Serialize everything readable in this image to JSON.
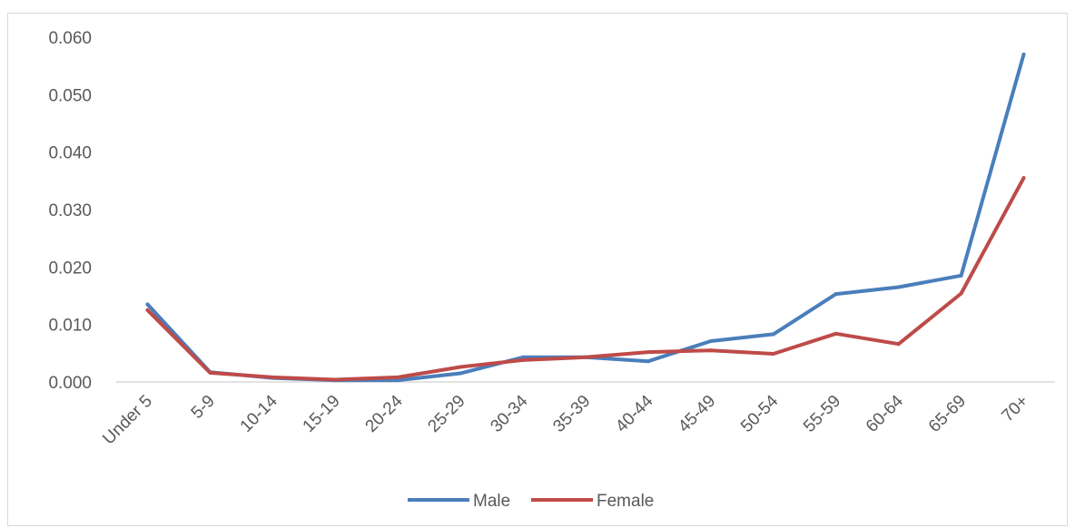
{
  "chart_data": {
    "type": "line",
    "title": "",
    "xlabel": "",
    "ylabel": "",
    "categories": [
      "Under 5",
      "5-9",
      "10-14",
      "15-19",
      "20-24",
      "25-29",
      "30-34",
      "35-39",
      "40-44",
      "45-49",
      "50-54",
      "55-59",
      "60-64",
      "65-69",
      "70+"
    ],
    "ylim": [
      0,
      0.06
    ],
    "yticks": [
      "0.000",
      "0.010",
      "0.020",
      "0.030",
      "0.040",
      "0.050",
      "0.060"
    ],
    "ytick_values": [
      0,
      0.01,
      0.02,
      0.03,
      0.04,
      0.05,
      0.06
    ],
    "grid": false,
    "legend_position": "bottom",
    "series": [
      {
        "name": "Male",
        "color": "#4a7ebb",
        "values": [
          0.0135,
          0.0017,
          0.0007,
          0.0003,
          0.0003,
          0.0015,
          0.0043,
          0.0043,
          0.0036,
          0.0071,
          0.0083,
          0.0153,
          0.0165,
          0.0185,
          0.057
        ]
      },
      {
        "name": "Female",
        "color": "#be4b48",
        "values": [
          0.0125,
          0.0016,
          0.0008,
          0.0004,
          0.0008,
          0.0026,
          0.0038,
          0.0043,
          0.0052,
          0.0055,
          0.0049,
          0.0084,
          0.0066,
          0.0154,
          0.0355
        ]
      }
    ]
  }
}
